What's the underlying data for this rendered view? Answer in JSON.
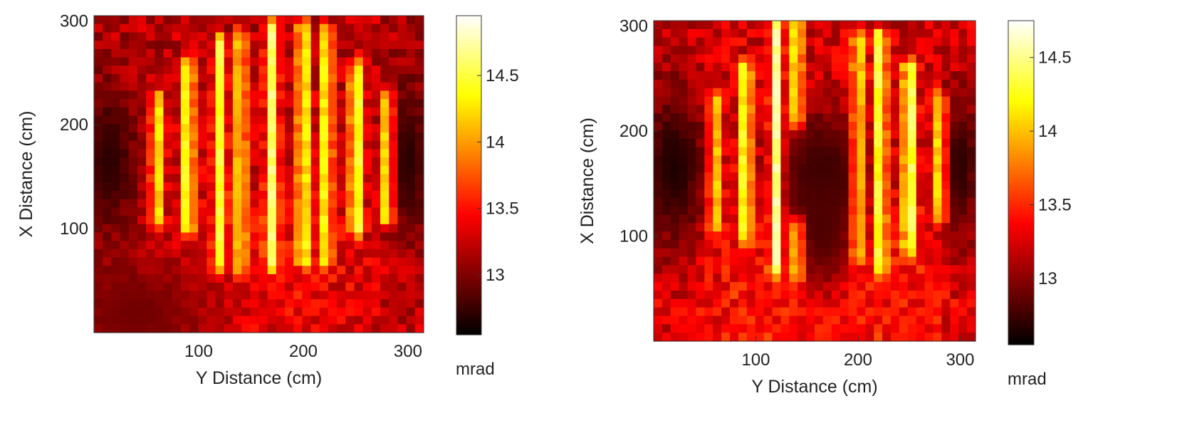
{
  "chart_data": [
    {
      "type": "heatmap",
      "xlabel": "Y Distance (cm)",
      "ylabel": "X Distance (cm)",
      "xlim": [
        0,
        315
      ],
      "ylim": [
        0,
        305
      ],
      "xticks": [
        100,
        200,
        300
      ],
      "yticks": [
        100,
        200,
        300
      ],
      "colorbar": {
        "label": "mrad",
        "range": [
          12.55,
          14.95
        ],
        "ticks": [
          13,
          13.5,
          14,
          14.5
        ],
        "colormap": "hot"
      },
      "grid_cells": [
        38,
        38
      ],
      "background_mrad": 13.2,
      "dark_regions": [
        {
          "y_center": 15,
          "x_center": 165,
          "y_width": 20,
          "x_width": 55,
          "mrad": 12.7
        },
        {
          "y_center": 300,
          "x_center": 165,
          "y_width": 15,
          "x_width": 55,
          "mrad": 12.7
        },
        {
          "y_center": 40,
          "x_center": 20,
          "y_width": 60,
          "x_width": 40,
          "mrad": 12.95
        }
      ],
      "bars": [
        {
          "y": 60,
          "x_start": 110,
          "x_end": 225,
          "mrad": 14.35
        },
        {
          "y": 90,
          "x_start": 100,
          "x_end": 255,
          "mrad": 14.65
        },
        {
          "y": 120,
          "x_start": 65,
          "x_end": 280,
          "mrad": 14.45
        },
        {
          "y": 140,
          "x_start": 65,
          "x_end": 285,
          "mrad": 14.35
        },
        {
          "y": 170,
          "x_start": 65,
          "x_end": 295,
          "mrad": 14.6
        },
        {
          "y": 200,
          "x_start": 70,
          "x_end": 295,
          "mrad": 14.55
        },
        {
          "y": 222,
          "x_start": 70,
          "x_end": 290,
          "mrad": 14.45
        },
        {
          "y": 250,
          "x_start": 100,
          "x_end": 255,
          "mrad": 14.65
        },
        {
          "y": 280,
          "x_start": 110,
          "x_end": 225,
          "mrad": 14.35
        }
      ]
    },
    {
      "type": "heatmap",
      "xlabel": "Y Distance (cm)",
      "ylabel": "X Distance (cm)",
      "xlim": [
        0,
        315
      ],
      "ylim": [
        0,
        305
      ],
      "xticks": [
        100,
        200,
        300
      ],
      "yticks": [
        100,
        200,
        300
      ],
      "colorbar": {
        "label": "mrad",
        "range": [
          12.55,
          14.75
        ],
        "ticks": [
          13,
          13.5,
          14,
          14.5
        ],
        "colormap": "hot"
      },
      "grid_cells": [
        38,
        38
      ],
      "background_mrad": 13.25,
      "dark_regions": [
        {
          "y_center": 20,
          "x_center": 165,
          "y_width": 25,
          "x_width": 60,
          "mrad": 12.65
        },
        {
          "y_center": 300,
          "x_center": 165,
          "y_width": 15,
          "x_width": 55,
          "mrad": 12.7
        },
        {
          "y_center": 165,
          "x_center": 160,
          "y_width": 35,
          "x_width": 45,
          "mrad": 12.7
        },
        {
          "y_center": 165,
          "x_center": 110,
          "y_width": 25,
          "x_width": 50,
          "mrad": 12.8
        }
      ],
      "bars": [
        {
          "y": 60,
          "x_start": 110,
          "x_end": 230,
          "mrad": 14.1
        },
        {
          "y": 90,
          "x_start": 100,
          "x_end": 260,
          "mrad": 14.45
        },
        {
          "y": 120,
          "x_start": 70,
          "x_end": 300,
          "mrad": 14.5
        },
        {
          "y": 140,
          "x_start": 210,
          "x_end": 300,
          "mrad": 14.3
        },
        {
          "y": 140,
          "x_start": 60,
          "x_end": 110,
          "mrad": 14.1
        },
        {
          "y": 200,
          "x_start": 80,
          "x_end": 290,
          "mrad": 14.2
        },
        {
          "y": 222,
          "x_start": 70,
          "x_end": 290,
          "mrad": 14.45
        },
        {
          "y": 250,
          "x_start": 90,
          "x_end": 260,
          "mrad": 14.6
        },
        {
          "y": 280,
          "x_start": 120,
          "x_end": 230,
          "mrad": 14.2
        }
      ]
    }
  ]
}
